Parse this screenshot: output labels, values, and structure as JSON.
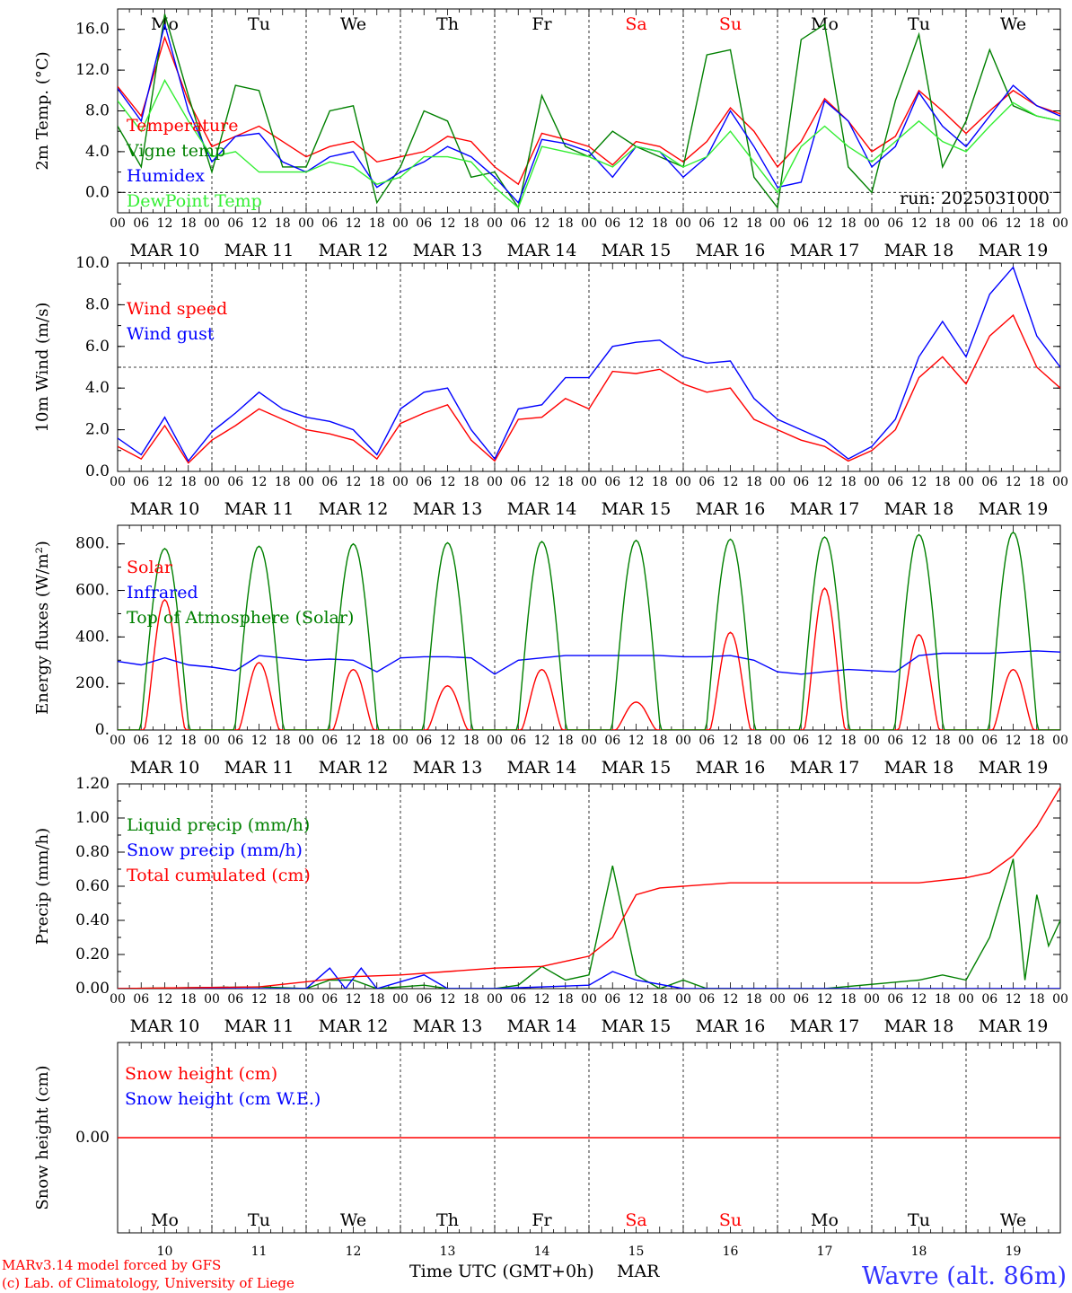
{
  "footer": {
    "credit_line1": "MARv3.14 model forced by GFS",
    "credit_line2": "(c) Lab. of Climatology, University of Liege",
    "time_axis_label": "Time UTC (GMT+0h)",
    "month_label": "MAR",
    "station": "Wavre (alt. 86m)"
  },
  "colors": {
    "red": "#ff0000",
    "green": "#008000",
    "blue": "#0000ff",
    "lightgreen": "#33ee33",
    "station": "#3333ff"
  },
  "days": [
    {
      "abbr": "Mo",
      "date": "MAR 10",
      "num": "10",
      "weekend": false
    },
    {
      "abbr": "Tu",
      "date": "MAR 11",
      "num": "11",
      "weekend": false
    },
    {
      "abbr": "We",
      "date": "MAR 12",
      "num": "12",
      "weekend": false
    },
    {
      "abbr": "Th",
      "date": "MAR 13",
      "num": "13",
      "weekend": false
    },
    {
      "abbr": "Fr",
      "date": "MAR 14",
      "num": "14",
      "weekend": false
    },
    {
      "abbr": "Sa",
      "date": "MAR 15",
      "num": "15",
      "weekend": true
    },
    {
      "abbr": "Su",
      "date": "MAR 16",
      "num": "16",
      "weekend": true
    },
    {
      "abbr": "Mo",
      "date": "MAR 17",
      "num": "17",
      "weekend": false
    },
    {
      "abbr": "Tu",
      "date": "MAR 18",
      "num": "18",
      "weekend": false
    },
    {
      "abbr": "We",
      "date": "MAR 19",
      "num": "19",
      "weekend": false
    }
  ],
  "hour_ticks": [
    "00",
    "06",
    "12",
    "18"
  ],
  "chart_data": [
    {
      "type": "line",
      "ylabel": "2m Temp. (°C)",
      "ylim": [
        -2.0,
        18.0
      ],
      "yticks": [
        0.0,
        4.0,
        8.0,
        12.0,
        16.0
      ],
      "ytick_labels": [
        "0.0",
        "4.0",
        "8.0",
        "12.0",
        "16.0"
      ],
      "ref_line": 0.0,
      "annotation": "run: 2025031000",
      "x_unit": "hours since MAR 10 00 UTC",
      "series": [
        {
          "name": "Temperature",
          "color": "red",
          "x": [
            0,
            6,
            12,
            18,
            24,
            30,
            36,
            42,
            48,
            54,
            60,
            66,
            72,
            78,
            84,
            90,
            96,
            102,
            108,
            114,
            120,
            126,
            132,
            138,
            144,
            150,
            156,
            162,
            168,
            174,
            180,
            186,
            192,
            198,
            204,
            210,
            216,
            222,
            228,
            234,
            240
          ],
          "values": [
            10.4,
            7.5,
            15.2,
            9.0,
            4.5,
            5.5,
            6.5,
            5.0,
            3.5,
            4.5,
            5.0,
            3.0,
            3.5,
            4.0,
            5.5,
            5.0,
            2.5,
            0.8,
            5.8,
            5.2,
            4.5,
            2.7,
            5.0,
            4.5,
            3.0,
            5.0,
            8.3,
            6.0,
            2.5,
            5.0,
            9.2,
            7.0,
            4.0,
            5.5,
            10.0,
            8.0,
            5.8,
            8.0,
            10.0,
            8.5,
            7.7
          ]
        },
        {
          "name": "Vigne temp",
          "color": "green",
          "x": [
            0,
            6,
            12,
            18,
            24,
            30,
            36,
            42,
            48,
            54,
            60,
            66,
            72,
            78,
            84,
            90,
            96,
            102,
            108,
            114,
            120,
            126,
            132,
            138,
            144,
            150,
            156,
            162,
            168,
            174,
            180,
            186,
            192,
            198,
            204,
            210,
            216,
            222,
            228,
            234,
            240
          ],
          "values": [
            6.5,
            2.5,
            17.5,
            9.5,
            2.0,
            10.5,
            10.0,
            2.5,
            2.5,
            8.0,
            8.5,
            -1.0,
            2.5,
            8.0,
            7.0,
            1.5,
            2.0,
            -1.5,
            9.5,
            4.5,
            3.5,
            6.0,
            4.5,
            3.5,
            2.5,
            13.5,
            14.0,
            1.5,
            -1.5,
            15.0,
            16.5,
            2.5,
            0.0,
            9.0,
            15.5,
            2.5,
            7.0,
            14.0,
            8.5,
            7.5,
            7.0
          ]
        },
        {
          "name": "Humidex",
          "color": "blue",
          "x": [
            0,
            6,
            12,
            18,
            24,
            30,
            36,
            42,
            48,
            54,
            60,
            66,
            72,
            78,
            84,
            90,
            96,
            102,
            108,
            114,
            120,
            126,
            132,
            138,
            144,
            150,
            156,
            162,
            168,
            174,
            180,
            186,
            192,
            198,
            204,
            210,
            216,
            222,
            228,
            234,
            240
          ],
          "values": [
            10.2,
            7.0,
            16.5,
            8.0,
            3.0,
            5.5,
            5.8,
            3.0,
            2.0,
            3.5,
            4.0,
            0.5,
            2.0,
            3.0,
            4.5,
            3.5,
            1.5,
            -1.0,
            5.2,
            4.8,
            4.0,
            1.5,
            4.5,
            4.0,
            1.5,
            3.5,
            8.0,
            4.5,
            0.5,
            1.0,
            9.0,
            7.0,
            2.5,
            4.5,
            9.8,
            6.5,
            4.5,
            7.5,
            10.5,
            8.5,
            7.5
          ]
        },
        {
          "name": "DewPoint Temp",
          "color": "lightgreen",
          "x": [
            0,
            6,
            12,
            18,
            24,
            30,
            36,
            42,
            48,
            54,
            60,
            66,
            72,
            78,
            84,
            90,
            96,
            102,
            108,
            114,
            120,
            126,
            132,
            138,
            144,
            150,
            156,
            162,
            168,
            174,
            180,
            186,
            192,
            198,
            204,
            210,
            216,
            222,
            228,
            234,
            240
          ],
          "values": [
            9.0,
            6.0,
            11.0,
            7.0,
            3.5,
            4.0,
            2.0,
            2.0,
            2.0,
            3.0,
            2.5,
            0.8,
            1.5,
            3.5,
            3.5,
            3.0,
            0.5,
            -1.5,
            4.5,
            4.0,
            3.5,
            2.5,
            4.5,
            4.0,
            2.5,
            3.5,
            6.0,
            3.0,
            0.0,
            4.5,
            6.5,
            4.5,
            3.0,
            5.0,
            7.0,
            5.0,
            4.0,
            6.5,
            8.8,
            7.5,
            7.0
          ]
        }
      ]
    },
    {
      "type": "line",
      "ylabel": "10m Wind (m/s)",
      "ylim": [
        0.0,
        10.0
      ],
      "yticks": [
        0.0,
        2.0,
        4.0,
        6.0,
        8.0,
        10.0
      ],
      "ytick_labels": [
        "0.0",
        "2.0",
        "4.0",
        "6.0",
        "8.0",
        "10.0"
      ],
      "ref_line": 5.0,
      "x_unit": "hours since MAR 10 00 UTC",
      "series": [
        {
          "name": "Wind speed",
          "color": "red",
          "x": [
            0,
            6,
            12,
            18,
            24,
            30,
            36,
            42,
            48,
            54,
            60,
            66,
            72,
            78,
            84,
            90,
            96,
            102,
            108,
            114,
            120,
            126,
            132,
            138,
            144,
            150,
            156,
            162,
            168,
            174,
            180,
            186,
            192,
            198,
            204,
            210,
            216,
            222,
            228,
            234,
            240
          ],
          "values": [
            1.2,
            0.6,
            2.2,
            0.4,
            1.5,
            2.2,
            3.0,
            2.5,
            2.0,
            1.8,
            1.5,
            0.6,
            2.3,
            2.8,
            3.2,
            1.5,
            0.5,
            2.5,
            2.6,
            3.5,
            3.0,
            4.8,
            4.7,
            4.9,
            4.2,
            3.8,
            4.0,
            2.5,
            2.0,
            1.5,
            1.2,
            0.5,
            1.0,
            2.0,
            4.5,
            5.5,
            4.2,
            6.5,
            7.5,
            5.0,
            4.0
          ]
        },
        {
          "name": "Wind gust",
          "color": "blue",
          "x": [
            0,
            6,
            12,
            18,
            24,
            30,
            36,
            42,
            48,
            54,
            60,
            66,
            72,
            78,
            84,
            90,
            96,
            102,
            108,
            114,
            120,
            126,
            132,
            138,
            144,
            150,
            156,
            162,
            168,
            174,
            180,
            186,
            192,
            198,
            204,
            210,
            216,
            222,
            228,
            234,
            240
          ],
          "values": [
            1.6,
            0.8,
            2.6,
            0.5,
            1.9,
            2.8,
            3.8,
            3.0,
            2.6,
            2.4,
            2.0,
            0.8,
            3.0,
            3.8,
            4.0,
            2.0,
            0.6,
            3.0,
            3.2,
            4.5,
            4.5,
            6.0,
            6.2,
            6.3,
            5.5,
            5.2,
            5.3,
            3.5,
            2.5,
            2.0,
            1.5,
            0.6,
            1.2,
            2.5,
            5.5,
            7.2,
            5.5,
            8.5,
            9.8,
            6.5,
            5.0
          ]
        }
      ]
    },
    {
      "type": "line",
      "ylabel": "Energy fluxes (W/m²)",
      "ylim": [
        0,
        880
      ],
      "yticks": [
        0,
        200,
        400,
        600,
        800
      ],
      "ytick_labels": [
        "0.",
        "200.",
        "400.",
        "600.",
        "800."
      ],
      "x_unit": "hours since MAR 10 00 UTC",
      "series": [
        {
          "name": "Solar",
          "color": "red",
          "peaks": [
            560,
            290,
            260,
            190,
            260,
            120,
            420,
            610,
            410,
            260
          ]
        },
        {
          "name": "Infrared",
          "color": "blue",
          "x": [
            0,
            6,
            12,
            18,
            24,
            30,
            36,
            42,
            48,
            54,
            60,
            66,
            72,
            78,
            84,
            90,
            96,
            102,
            108,
            114,
            120,
            126,
            132,
            138,
            144,
            150,
            156,
            162,
            168,
            174,
            180,
            186,
            192,
            198,
            204,
            210,
            216,
            222,
            228,
            234,
            240
          ],
          "values": [
            295,
            280,
            310,
            280,
            270,
            255,
            320,
            310,
            300,
            305,
            300,
            250,
            310,
            315,
            315,
            310,
            240,
            300,
            310,
            320,
            320,
            320,
            320,
            320,
            315,
            315,
            320,
            300,
            250,
            240,
            250,
            260,
            255,
            250,
            320,
            330,
            330,
            330,
            335,
            340,
            335
          ]
        },
        {
          "name": "Top of Atmosphere (Solar)",
          "color": "green",
          "peaks": [
            780,
            790,
            800,
            805,
            810,
            815,
            820,
            830,
            840,
            850
          ]
        }
      ]
    },
    {
      "type": "line",
      "ylabel": "Precip (mm/h)",
      "ylim": [
        0.0,
        1.2
      ],
      "yticks": [
        0.0,
        0.2,
        0.4,
        0.6,
        0.8,
        1.0,
        1.2
      ],
      "ytick_labels": [
        "0.00",
        "0.20",
        "0.40",
        "0.60",
        "0.80",
        "1.00",
        "1.20"
      ],
      "x_unit": "hours since MAR 10 00 UTC",
      "series": [
        {
          "name": "Liquid precip (mm/h)",
          "color": "green",
          "x": [
            0,
            36,
            48,
            54,
            60,
            66,
            78,
            84,
            96,
            102,
            108,
            114,
            120,
            126,
            132,
            138,
            144,
            150,
            156,
            168,
            180,
            204,
            210,
            216,
            222,
            228,
            231,
            234,
            237,
            240
          ],
          "values": [
            0,
            0.01,
            0,
            0.05,
            0.05,
            0,
            0.02,
            0,
            0,
            0.02,
            0.13,
            0.05,
            0.08,
            0.72,
            0.08,
            0,
            0.05,
            0,
            0,
            0,
            0,
            0.05,
            0.08,
            0.05,
            0.3,
            0.76,
            0.05,
            0.55,
            0.25,
            0.4
          ]
        },
        {
          "name": "Snow precip (mm/h)",
          "color": "blue",
          "x": [
            0,
            48,
            54,
            58,
            62,
            66,
            78,
            84,
            96,
            120,
            126,
            132,
            144,
            240
          ],
          "values": [
            0,
            0,
            0.12,
            0.0,
            0.12,
            0,
            0.08,
            0,
            0,
            0.02,
            0.1,
            0.05,
            0,
            0
          ]
        },
        {
          "name": "Total cumulated (cm)",
          "color": "red",
          "x": [
            0,
            36,
            48,
            60,
            72,
            84,
            96,
            108,
            114,
            120,
            126,
            132,
            138,
            144,
            156,
            168,
            180,
            192,
            204,
            216,
            222,
            228,
            234,
            240
          ],
          "values": [
            0,
            0.01,
            0.04,
            0.07,
            0.08,
            0.1,
            0.12,
            0.13,
            0.16,
            0.19,
            0.3,
            0.55,
            0.59,
            0.6,
            0.62,
            0.62,
            0.62,
            0.62,
            0.62,
            0.65,
            0.68,
            0.78,
            0.95,
            1.18
          ]
        }
      ]
    },
    {
      "type": "line",
      "ylabel": "Snow height (cm)",
      "ylim": [
        -1.0,
        1.0
      ],
      "yticks": [
        0.0
      ],
      "ytick_labels": [
        "0.00"
      ],
      "x_unit": "hours since MAR 10 00 UTC",
      "series": [
        {
          "name": "Snow height (cm)",
          "color": "red",
          "x": [
            0,
            240
          ],
          "values": [
            0.0,
            0.0
          ]
        },
        {
          "name": "Snow height (cm W.E.)",
          "color": "blue",
          "x": [],
          "values": []
        }
      ]
    }
  ]
}
